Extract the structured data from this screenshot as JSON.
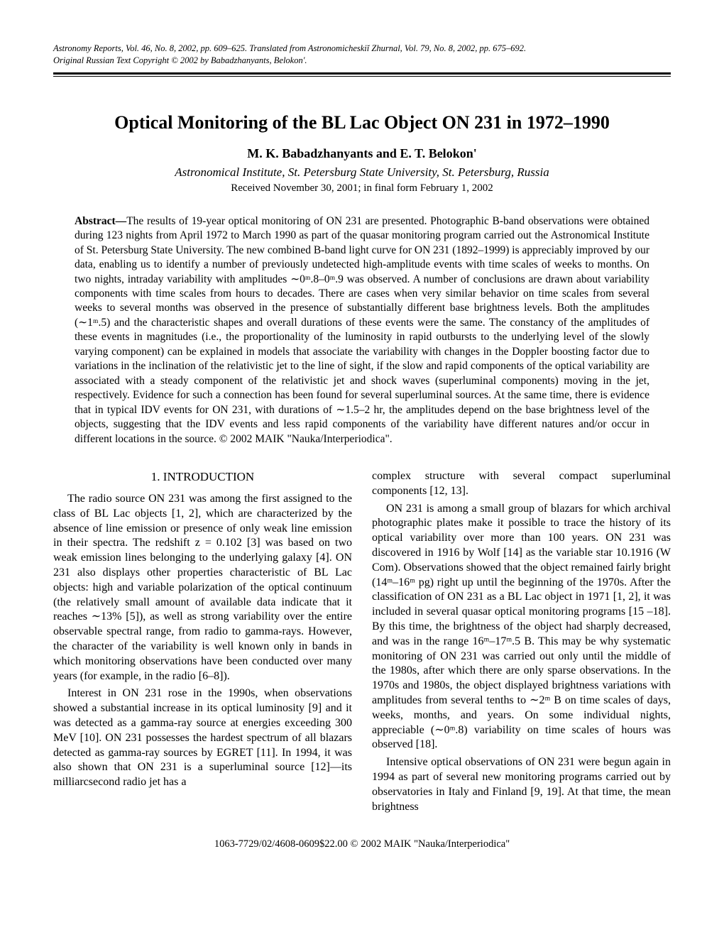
{
  "header": {
    "line1": "Astronomy Reports, Vol. 46, No. 8, 2002, pp. 609–625. Translated from Astronomicheskiĭ Zhurnal, Vol. 79, No. 8, 2002, pp. 675–692.",
    "line2": "Original Russian Text Copyright © 2002 by Babadzhanyants, Belokon'."
  },
  "title": "Optical Monitoring of the BL Lac Object ON 231 in 1972–1990",
  "authors": "M. K. Babadzhanyants and E. T. Belokon'",
  "affiliation": "Astronomical Institute, St. Petersburg State University, St. Petersburg, Russia",
  "received": "Received November 30, 2001; in final form February 1, 2002",
  "abstract_label": "Abstract—",
  "abstract": "The results of 19-year optical monitoring of ON 231 are presented. Photographic B-band observations were obtained during 123 nights from April 1972 to March 1990 as part of the quasar monitoring program carried out the Astronomical Institute of St. Petersburg State University. The new combined B-band light curve for ON 231 (1892–1999) is appreciably improved by our data, enabling us to identify a number of previously undetected high-amplitude events with time scales of weeks to months. On two nights, intraday variability with amplitudes ∼0ᵐ.8–0ᵐ.9 was observed. A number of conclusions are drawn about variability components with time scales from hours to decades. There are cases when very similar behavior on time scales from several weeks to several months was observed in the presence of substantially different base brightness levels. Both the amplitudes (∼1ᵐ.5) and the characteristic shapes and overall durations of these events were the same. The constancy of the amplitudes of these events in magnitudes (i.e., the proportionality of the luminosity in rapid outbursts to the underlying level of the slowly varying component) can be explained in models that associate the variability with changes in the Doppler boosting factor due to variations in the inclination of the relativistic jet to the line of sight, if the slow and rapid components of the optical variability are associated with a steady component of the relativistic jet and shock waves (superluminal components) moving in the jet, respectively. Evidence for such a connection has been found for several superluminal sources. At the same time, there is evidence that in typical IDV events for ON 231, with durations of ∼1.5–2 hr, the amplitudes depend on the base brightness level of the objects, suggesting that the IDV events and less rapid components of the variability have different natures and/or occur in different locations in the source. © 2002 MAIK \"Nauka/Interperiodica\".",
  "section1_title": "1. INTRODUCTION",
  "body": {
    "left_p1": "The radio source ON 231 was among the first assigned to the class of BL Lac objects [1, 2], which are characterized by the absence of line emission or presence of only weak line emission in their spectra. The redshift z = 0.102 [3] was based on two weak emission lines belonging to the underlying galaxy [4]. ON 231 also displays other properties characteristic of BL Lac objects: high and variable polarization of the optical continuum (the relatively small amount of available data indicate that it reaches ∼13% [5]), as well as strong variability over the entire observable spectral range, from radio to gamma-rays. However, the character of the variability is well known only in bands in which monitoring observations have been conducted over many years (for example, in the radio [6–8]).",
    "left_p2": "Interest in ON 231 rose in the 1990s, when observations showed a substantial increase in its optical luminosity [9] and it was detected as a gamma-ray source at energies exceeding 300 MeV [10]. ON 231 possesses the hardest spectrum of all blazars detected as gamma-ray sources by EGRET [11]. In 1994, it was also shown that ON 231 is a superluminal source [12]—its milliarcsecond radio jet has a",
    "right_p1": "complex structure with several compact superluminal components [12, 13].",
    "right_p2": "ON 231 is among a small group of blazars for which archival photographic plates make it possible to trace the history of its optical variability over more than 100 years. ON 231 was discovered in 1916 by Wolf [14] as the variable star 10.1916 (W Com). Observations showed that the object remained fairly bright (14ᵐ–16ᵐ pg) right up until the beginning of the 1970s. After the classification of ON 231 as a BL Lac object in 1971 [1, 2], it was included in several quasar optical monitoring programs [15 –18]. By this time, the brightness of the object had sharply decreased, and was in the range 16ᵐ–17ᵐ.5 B. This may be why systematic monitoring of ON 231 was carried out only until the middle of the 1980s, after which there are only sparse observations. In the 1970s and 1980s, the object displayed brightness variations with amplitudes from several tenths to ∼2ᵐ B on time scales of days, weeks, months, and years. On some individual nights, appreciable (∼0ᵐ.8) variability on time scales of hours was observed [18].",
    "right_p3": "Intensive optical observations of ON 231 were begun again in 1994 as part of several new monitoring programs carried out by observatories in Italy and Finland [9, 19]. At that time, the mean brightness"
  },
  "footer": "1063-7729/02/4608-0609$22.00 © 2002 MAIK \"Nauka/Interperiodica\""
}
